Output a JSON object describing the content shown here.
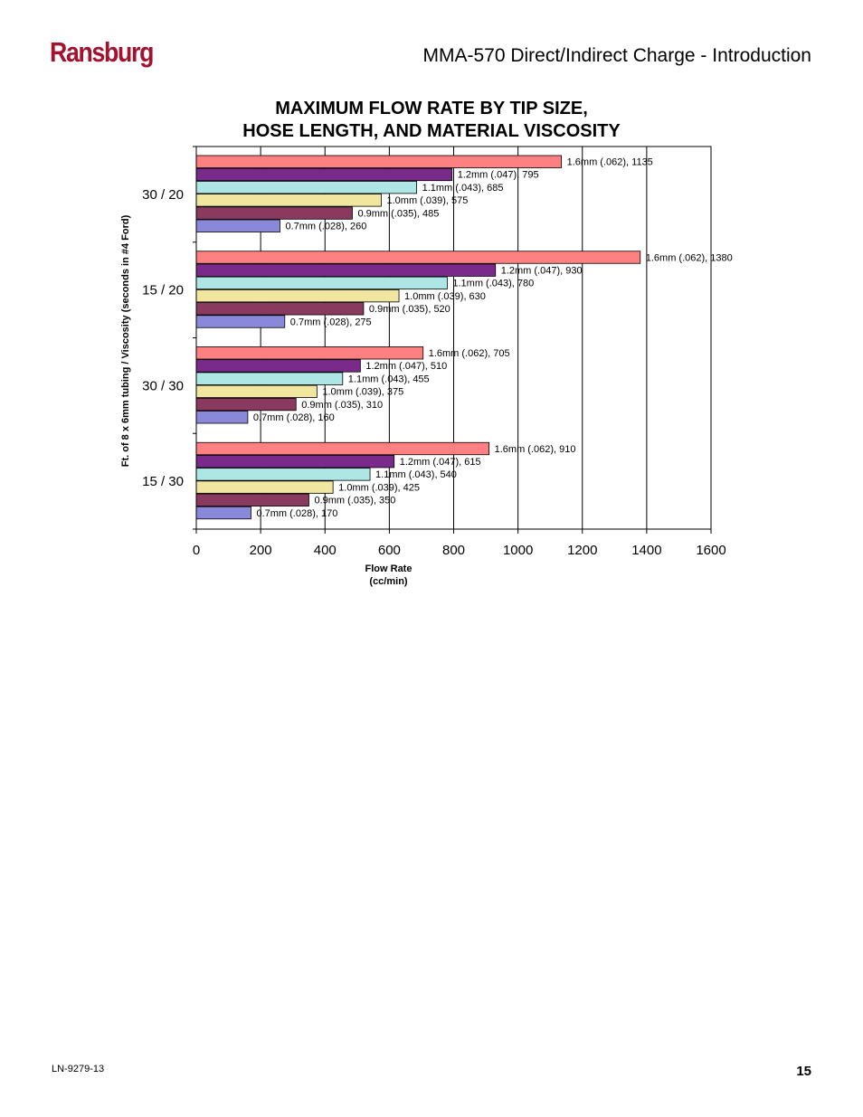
{
  "header": {
    "brand": "Ransburg",
    "doc_title": "MMA-570 Direct/Indirect Charge - Introduction"
  },
  "footer": {
    "doc_code": "LN-9279-13",
    "page_number": "15"
  },
  "chart_data": {
    "type": "bar",
    "orientation": "horizontal",
    "title": "MAXIMUM FLOW RATE BY TIP SIZE,",
    "subtitle": "HOSE LENGTH, AND MATERIAL VISCOSITY",
    "xlabel": "Flow Rate",
    "xlabel_unit": "(cc/min)",
    "ylabel": "Ft. of 8 x 6mm tubing / Viscosity (seconds in #4 Ford)",
    "xlim": [
      0,
      1600
    ],
    "xticks": [
      "0",
      "200",
      "400",
      "600",
      "800",
      "1000",
      "1200",
      "1400",
      "1600"
    ],
    "grid": true,
    "legend": "none (labels on bars)",
    "categories": [
      "30 / 20",
      "15 / 20",
      "30 / 30",
      "15 / 30"
    ],
    "series": [
      {
        "name": "1.6mm (.062)",
        "color": "#ff8080",
        "values": [
          1135,
          1380,
          705,
          910
        ],
        "labels": [
          "1.6mm (.062), 1135",
          "1.6mm (.062), 1380",
          "1.6mm (.062), 705",
          "1.6mm (.062), 910"
        ]
      },
      {
        "name": "1.2mm (.047)",
        "color": "#7a2a8a",
        "values": [
          795,
          930,
          510,
          615
        ],
        "labels": [
          "1.2mm (.047), 795",
          "1.2mm (.047), 930",
          "1.2mm (.047), 510",
          "1.2mm (.047), 615"
        ]
      },
      {
        "name": "1.1mm (.043)",
        "color": "#aee6e6",
        "values": [
          685,
          780,
          455,
          540
        ],
        "labels": [
          "1.1mm (.043), 685",
          "1.1mm (.043), 780",
          "1.1mm (.043), 455",
          "1.1mm (.043), 540"
        ]
      },
      {
        "name": "1.0mm (.039)",
        "color": "#f0e6a0",
        "values": [
          575,
          630,
          375,
          425
        ],
        "labels": [
          "1.0mm (.039), 575",
          "1.0mm (.039), 630",
          "1.0mm (.039), 375",
          "1.0mm (.039), 425"
        ]
      },
      {
        "name": "0.9mm (.035)",
        "color": "#8a3a5e",
        "values": [
          485,
          520,
          310,
          350
        ],
        "labels": [
          "0.9mm (.035), 485",
          "0.9mm (.035), 520",
          "0.9mm (.035), 310",
          "0.9mm (.035), 350"
        ]
      },
      {
        "name": "0.7mm (.028)",
        "color": "#8a88d8",
        "values": [
          260,
          275,
          160,
          170
        ],
        "labels": [
          "0.7mm (.028), 260",
          "0.7mm (.028), 275",
          "0.7mm (.028), 160",
          "0.7mm (.028), 170"
        ]
      }
    ]
  }
}
